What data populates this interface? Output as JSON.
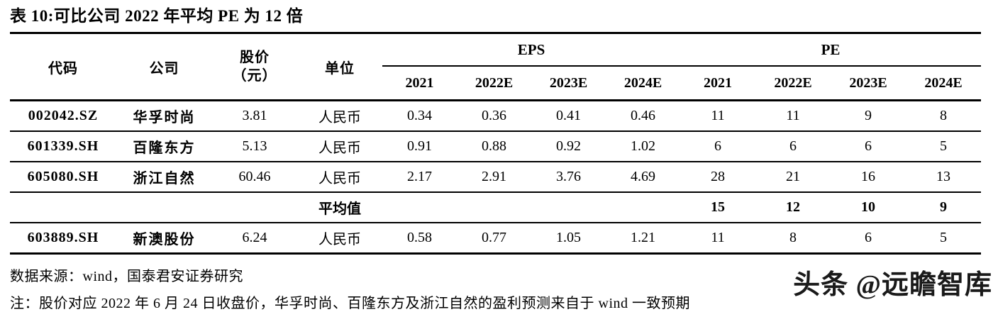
{
  "title": "表 10:可比公司 2022 年平均 PE 为 12 倍",
  "table": {
    "header": {
      "code": "代码",
      "company": "公司",
      "price_line1": "股价",
      "price_line2": "（元）",
      "unit": "单位",
      "groups": [
        {
          "label": "EPS",
          "years": [
            "2021",
            "2022E",
            "2023E",
            "2024E"
          ]
        },
        {
          "label": "PE",
          "years": [
            "2021",
            "2022E",
            "2023E",
            "2024E"
          ]
        }
      ]
    },
    "rows": [
      {
        "code": "002042.SZ",
        "company": "华孚时尚",
        "price": "3.81",
        "unit": "人民币",
        "eps": [
          "0.34",
          "0.36",
          "0.41",
          "0.46"
        ],
        "pe": [
          "11",
          "11",
          "9",
          "8"
        ]
      },
      {
        "code": "601339.SH",
        "company": "百隆东方",
        "price": "5.13",
        "unit": "人民币",
        "eps": [
          "0.91",
          "0.88",
          "0.92",
          "1.02"
        ],
        "pe": [
          "6",
          "6",
          "6",
          "5"
        ]
      },
      {
        "code": "605080.SH",
        "company": "浙江自然",
        "price": "60.46",
        "unit": "人民币",
        "eps": [
          "2.17",
          "2.91",
          "3.76",
          "4.69"
        ],
        "pe": [
          "28",
          "21",
          "16",
          "13"
        ]
      }
    ],
    "average_row": {
      "label": "平均值",
      "pe": [
        "15",
        "12",
        "10",
        "9"
      ]
    },
    "extra_row": {
      "code": "603889.SH",
      "company": "新澳股份",
      "price": "6.24",
      "unit": "人民币",
      "eps": [
        "0.58",
        "0.77",
        "1.05",
        "1.21"
      ],
      "pe": [
        "11",
        "8",
        "6",
        "5"
      ]
    }
  },
  "footer": {
    "source": "数据来源：wind，国泰君安证券研究",
    "note": "注：股价对应 2022 年 6 月 24 日收盘价，华孚时尚、百隆东方及浙江自然的盈利预测来自于 wind 一致预期"
  },
  "watermark": "头条 @远瞻智库",
  "colors": {
    "text": "#000000",
    "background": "#ffffff",
    "rule": "#000000",
    "watermark": "#1a1a1a"
  }
}
